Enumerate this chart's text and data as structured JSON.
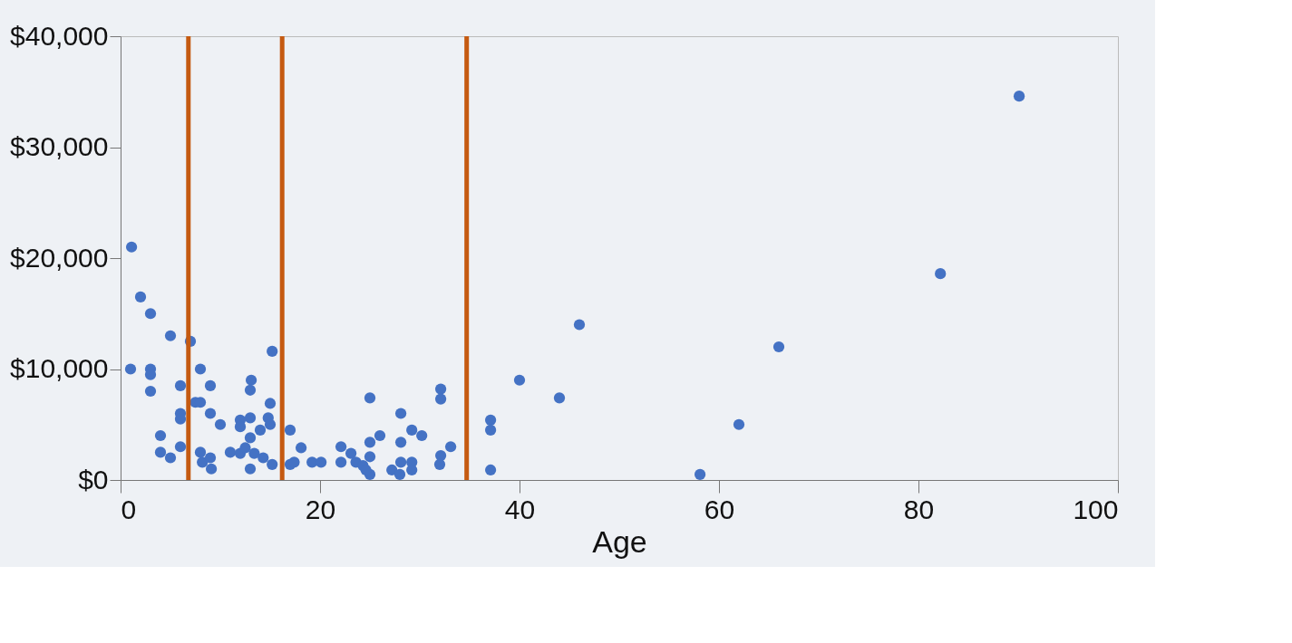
{
  "chart_data": {
    "type": "scatter",
    "xlabel": "Age",
    "x": [
      1.1,
      2,
      3,
      1,
      3,
      3,
      3,
      5,
      7,
      6,
      8,
      9,
      4,
      4,
      5,
      6,
      6,
      6,
      7.5,
      8,
      9,
      10,
      8,
      13.1,
      13,
      15.2,
      15,
      14.8,
      13,
      12,
      17,
      18.1,
      11,
      12,
      12.5,
      13,
      13.4,
      14.3,
      15.2,
      17,
      8.2,
      9.1,
      9,
      14,
      13,
      15,
      12,
      17.4,
      19.2,
      20.1,
      22.1,
      22.1,
      23.1,
      23.6,
      24.3,
      25,
      25,
      25,
      25,
      24.6,
      26,
      27.2,
      28.1,
      28.1,
      28.1,
      28,
      29.2,
      30.2,
      29.2,
      29.2,
      32.1,
      32.1,
      32.1,
      32,
      33.1,
      37.1,
      37.1,
      37.1,
      40,
      44,
      46,
      58.1,
      62,
      66,
      82.2,
      90.1
    ],
    "series": [
      {
        "color": "#4472c4",
        "values": [
          21000,
          16500,
          15000,
          10000,
          10000,
          9500,
          8000,
          13000,
          12500,
          8500,
          10000,
          8500,
          4000,
          2500,
          2000,
          3000,
          6000,
          5500,
          7000,
          7000,
          6000,
          5000,
          2500,
          9000,
          8100,
          11600,
          6900,
          5600,
          5600,
          5400,
          4500,
          2900,
          2500,
          2400,
          2900,
          1000,
          2400,
          2000,
          1400,
          1400,
          1600,
          1000,
          2000,
          4500,
          3800,
          5000,
          4800,
          1600,
          1600,
          1600,
          3000,
          1600,
          2400,
          1600,
          1300,
          2100,
          3400,
          7400,
          500,
          900,
          4000,
          900,
          6000,
          3400,
          1600,
          500,
          4500,
          4000,
          1600,
          900,
          8200,
          7300,
          2200,
          1400,
          3000,
          5400,
          4500,
          900,
          9000,
          7400,
          14000,
          500,
          5000,
          12000,
          18600,
          34600
        ]
      }
    ],
    "xlim": [
      0,
      100
    ],
    "xticks": [
      0,
      20,
      40,
      60,
      80,
      100
    ],
    "ylim": [
      0,
      40000
    ],
    "yticks": [
      {
        "value": 0,
        "label": "$0"
      },
      {
        "value": 10000,
        "label": "$10,000"
      },
      {
        "value": 20000,
        "label": "$20,000"
      },
      {
        "value": 30000,
        "label": "$30,000"
      },
      {
        "value": 40000,
        "label": "$40,000"
      }
    ],
    "ref_lines": [
      {
        "axis": "x",
        "value": 6.8,
        "color": "#c55a11"
      },
      {
        "axis": "x",
        "value": 16.2,
        "color": "#c55a11"
      },
      {
        "axis": "x",
        "value": 34.7,
        "color": "#c55a11"
      }
    ],
    "grid": false,
    "marker": "circle"
  }
}
